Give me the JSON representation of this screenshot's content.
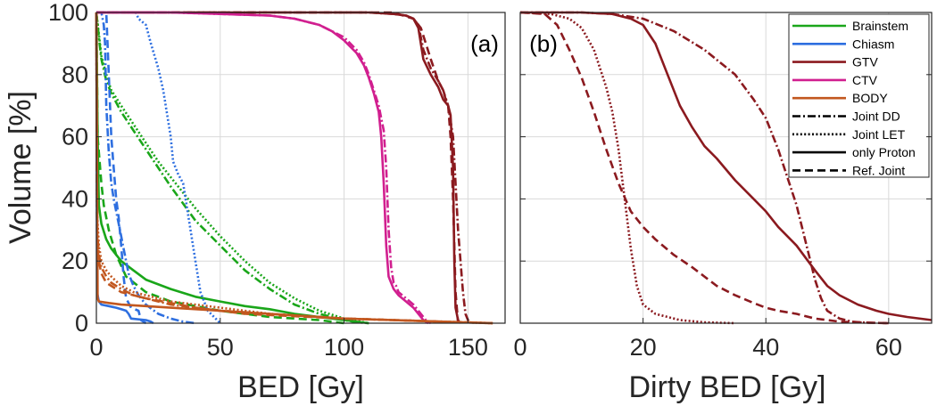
{
  "chart_data": [
    {
      "type": "line",
      "panel_label": "(a)",
      "title": "",
      "xlabel": "BED [Gy]",
      "ylabel": "Volume [%]",
      "xlim": [
        0,
        165
      ],
      "ylim": [
        0,
        100
      ],
      "xticks": [
        0,
        50,
        100,
        150
      ],
      "yticks": [
        0,
        20,
        40,
        60,
        80,
        100
      ],
      "grid": true,
      "series": [
        {
          "name": "Brainstem",
          "structure": "Brainstem",
          "color": "#1aa61a",
          "style": "dashdot",
          "x": [
            0,
            1,
            2,
            4,
            6,
            10,
            15,
            20,
            25,
            30,
            40,
            50,
            60,
            70,
            80,
            90,
            100,
            105,
            110
          ],
          "y": [
            100,
            92,
            85,
            78,
            74,
            68,
            62,
            56,
            50,
            44,
            33,
            25,
            17,
            11,
            6,
            3,
            1,
            0.3,
            0
          ]
        },
        {
          "name": "Brainstem",
          "structure": "Brainstem",
          "color": "#1aa61a",
          "style": "dotted",
          "x": [
            0,
            1,
            2,
            4,
            6,
            10,
            15,
            20,
            25,
            30,
            35,
            40,
            50,
            60,
            70,
            80,
            90,
            100,
            110
          ],
          "y": [
            100,
            93,
            86,
            80,
            75,
            70,
            64,
            58,
            52,
            47,
            42,
            37,
            28,
            20,
            13,
            8,
            4,
            1.5,
            0
          ]
        },
        {
          "name": "Brainstem",
          "structure": "Brainstem",
          "color": "#1aa61a",
          "style": "solid",
          "x": [
            0,
            0.5,
            1,
            2,
            4,
            6,
            10,
            15,
            20,
            30,
            40,
            50,
            60,
            70,
            80,
            90,
            100,
            110
          ],
          "y": [
            100,
            60,
            38,
            32,
            27,
            24,
            20,
            17,
            14,
            11,
            8.5,
            7,
            5.5,
            4.5,
            3,
            2,
            1,
            0
          ]
        },
        {
          "name": "Brainstem",
          "structure": "Brainstem",
          "color": "#1aa61a",
          "style": "dashed",
          "x": [
            0,
            0.5,
            1,
            2,
            3,
            5,
            8,
            12,
            20,
            30,
            50,
            70,
            90,
            100
          ],
          "y": [
            100,
            60,
            55,
            45,
            38,
            30,
            22,
            15,
            10,
            7,
            4,
            2,
            1,
            0
          ]
        },
        {
          "name": "Chiasm",
          "structure": "Chiasm",
          "color": "#2e6fe0",
          "style": "dashdot",
          "x": [
            0,
            2,
            3,
            3.5,
            4,
            5,
            6,
            7,
            8,
            9,
            10,
            11,
            12,
            13,
            15,
            17,
            20,
            25,
            30,
            35,
            40
          ],
          "y": [
            100,
            100,
            96,
            90,
            70,
            55,
            45,
            40,
            36,
            32,
            28,
            24,
            20,
            16,
            12,
            9,
            6,
            3,
            1.5,
            0.5,
            0
          ]
        },
        {
          "name": "Chiasm",
          "structure": "Chiasm",
          "color": "#2e6fe0",
          "style": "dotted",
          "x": [
            0,
            16,
            17,
            20,
            22,
            25,
            27,
            28,
            30,
            31,
            33,
            35,
            38,
            40,
            42,
            45,
            50
          ],
          "y": [
            100,
            100,
            98,
            96,
            90,
            82,
            75,
            70,
            60,
            52,
            48,
            45,
            30,
            20,
            10,
            4,
            0
          ]
        },
        {
          "name": "Chiasm",
          "structure": "Chiasm",
          "color": "#2e6fe0",
          "style": "solid",
          "x": [
            0,
            0.3,
            1,
            2,
            5,
            8,
            10,
            12,
            13,
            14,
            20,
            22,
            23
          ],
          "y": [
            100,
            10,
            7,
            6,
            5.5,
            5,
            4.5,
            4,
            3,
            1.5,
            1,
            0.5,
            0
          ]
        },
        {
          "name": "Chiasm",
          "structure": "Chiasm",
          "color": "#2e6fe0",
          "style": "dashed",
          "x": [
            0,
            4,
            5,
            6,
            7,
            8,
            9,
            10,
            11,
            12,
            14,
            17,
            18,
            20
          ],
          "y": [
            100,
            100,
            80,
            60,
            50,
            40,
            34,
            25,
            15,
            8,
            5,
            4,
            1,
            0
          ]
        },
        {
          "name": "GTV",
          "structure": "GTV",
          "color": "#8b1a1f",
          "style": "dashdot",
          "x": [
            0,
            110,
            120,
            125,
            128,
            130,
            132,
            135,
            138,
            140,
            142,
            144,
            146,
            148,
            149,
            150,
            151
          ],
          "y": [
            100,
            100,
            99.5,
            99,
            98,
            96,
            88,
            82,
            78,
            75,
            70,
            60,
            30,
            10,
            3,
            1,
            0
          ]
        },
        {
          "name": "GTV",
          "structure": "GTV",
          "color": "#8b1a1f",
          "style": "solid",
          "x": [
            0,
            110,
            120,
            125,
            128,
            130,
            132,
            135,
            138,
            140,
            142,
            143,
            144,
            144.5,
            145,
            146,
            147
          ],
          "y": [
            100,
            100,
            99.5,
            99,
            98,
            95,
            85,
            80,
            76,
            72,
            70,
            67,
            50,
            20,
            5,
            1,
            0
          ]
        },
        {
          "name": "GTV",
          "structure": "GTV",
          "color": "#8b1a1f",
          "style": "dashed",
          "x": [
            0,
            120,
            128,
            131,
            133,
            135,
            138,
            140,
            141,
            142,
            143,
            144,
            145,
            146
          ],
          "y": [
            100,
            100,
            98,
            95,
            90,
            85,
            78,
            75,
            72,
            70,
            60,
            40,
            10,
            0
          ]
        },
        {
          "name": "CTV",
          "structure": "CTV",
          "color": "#d11f8f",
          "style": "dashdot",
          "x": [
            0,
            30,
            50,
            70,
            80,
            90,
            95,
            100,
            105,
            108,
            110,
            112,
            114,
            116,
            117,
            118,
            119,
            120,
            121,
            122,
            125,
            128,
            130,
            133,
            135
          ],
          "y": [
            100,
            100,
            99.5,
            99,
            98,
            96,
            94,
            92,
            88,
            84,
            80,
            75,
            70,
            62,
            50,
            30,
            18,
            13,
            12,
            10,
            8,
            6,
            4,
            1,
            0
          ]
        },
        {
          "name": "CTV",
          "structure": "CTV",
          "color": "#d11f8f",
          "style": "solid",
          "x": [
            0,
            30,
            50,
            70,
            80,
            90,
            95,
            100,
            105,
            108,
            110,
            112,
            114,
            115,
            116,
            117,
            118,
            119,
            120,
            122,
            125,
            128,
            130,
            132,
            134
          ],
          "y": [
            100,
            100,
            99.5,
            99,
            98,
            96,
            94,
            91,
            87,
            83,
            79,
            74,
            68,
            60,
            45,
            25,
            15,
            13,
            11,
            9,
            7,
            5,
            3,
            1,
            0
          ]
        },
        {
          "name": "BODY",
          "structure": "BODY",
          "color": "#c2571f",
          "style": "dashdot",
          "x": [
            0,
            0.3,
            1,
            2,
            4,
            6,
            10,
            15,
            20,
            30,
            50,
            70,
            100,
            120,
            140,
            160
          ],
          "y": [
            100,
            30,
            22,
            18,
            15,
            13,
            11,
            9,
            8,
            6,
            4,
            3,
            1.5,
            1,
            0.5,
            0
          ]
        },
        {
          "name": "BODY",
          "structure": "BODY",
          "color": "#c2571f",
          "style": "dotted",
          "x": [
            0,
            0.3,
            1,
            2,
            4,
            6,
            10,
            15,
            20,
            30,
            50,
            70,
            100,
            120,
            140,
            160
          ],
          "y": [
            100,
            35,
            25,
            20,
            17,
            15,
            12,
            10,
            9,
            7,
            5,
            3,
            1.5,
            1,
            0.5,
            0
          ]
        },
        {
          "name": "BODY",
          "structure": "BODY",
          "color": "#c2571f",
          "style": "solid",
          "x": [
            0,
            0.5,
            1,
            5,
            10,
            20,
            30,
            50,
            80,
            100,
            120,
            140,
            160
          ],
          "y": [
            100,
            8,
            7,
            6.5,
            6,
            5.5,
            5,
            4,
            2.5,
            1.5,
            1,
            0.5,
            0
          ]
        },
        {
          "name": "BODY",
          "structure": "BODY",
          "color": "#c2571f",
          "style": "dashed",
          "x": [
            0,
            0.3,
            1,
            2,
            4,
            10,
            20,
            40,
            60,
            100,
            140,
            160
          ],
          "y": [
            100,
            25,
            20,
            16,
            13,
            10,
            8,
            5,
            3,
            1.5,
            0.5,
            0
          ]
        }
      ]
    },
    {
      "type": "line",
      "panel_label": "(b)",
      "title": "",
      "xlabel": "Dirty BED [Gy]",
      "ylabel": "",
      "xlim": [
        0,
        67
      ],
      "ylim": [
        0,
        100
      ],
      "xticks": [
        0,
        20,
        40,
        60
      ],
      "yticks": [
        0,
        20,
        40,
        60,
        80,
        100
      ],
      "grid": true,
      "series": [
        {
          "name": "GTV",
          "structure": "GTV",
          "color": "#8b1a1f",
          "style": "dashdot",
          "x": [
            0,
            10,
            15,
            20,
            25,
            30,
            35,
            38,
            40,
            42,
            44,
            45,
            46,
            47,
            48,
            49,
            50,
            52,
            54,
            56,
            60
          ],
          "y": [
            100,
            100,
            99.5,
            98,
            94,
            88,
            80,
            72,
            66,
            56,
            44,
            38,
            30,
            22,
            14,
            8,
            4,
            1.5,
            0.5,
            0.2,
            0
          ]
        },
        {
          "name": "GTV",
          "structure": "GTV",
          "color": "#8b1a1f",
          "style": "dotted",
          "x": [
            0,
            5,
            8,
            10,
            12,
            14,
            15,
            16,
            17,
            18,
            19,
            20,
            22,
            24,
            26,
            30,
            35
          ],
          "y": [
            100,
            99.5,
            98,
            95,
            88,
            76,
            68,
            56,
            40,
            24,
            12,
            6,
            3,
            2,
            1,
            0.3,
            0
          ]
        },
        {
          "name": "GTV",
          "structure": "GTV",
          "color": "#8b1a1f",
          "style": "solid",
          "x": [
            0,
            10,
            15,
            18,
            20,
            22,
            24,
            26,
            28,
            30,
            32,
            35,
            38,
            40,
            42,
            45,
            48,
            50,
            52,
            55,
            58,
            60,
            63,
            67
          ],
          "y": [
            100,
            100,
            99.5,
            98,
            96,
            90,
            80,
            70,
            63,
            57,
            53,
            46,
            40,
            36,
            31,
            25,
            17,
            12,
            9,
            6,
            4,
            3,
            2,
            1
          ]
        },
        {
          "name": "GTV",
          "structure": "GTV",
          "color": "#8b1a1f",
          "style": "dashed",
          "x": [
            0,
            4,
            6,
            8,
            10,
            12,
            14,
            16,
            18,
            20,
            22,
            25,
            28,
            30,
            32,
            35,
            38,
            40,
            42,
            45,
            48,
            50,
            52,
            55,
            58,
            60
          ],
          "y": [
            100,
            99.5,
            96,
            88,
            79,
            68,
            56,
            45,
            36,
            31,
            27,
            22,
            18,
            15,
            12,
            9,
            6.5,
            5,
            4,
            3,
            1.5,
            1,
            0.5,
            0.3,
            0.1,
            0
          ]
        }
      ],
      "legend": {
        "placement": "top-right",
        "entries": [
          {
            "label": "Brainstem",
            "color": "#1aa61a",
            "style": "solid"
          },
          {
            "label": "Chiasm",
            "color": "#2e6fe0",
            "style": "solid"
          },
          {
            "label": "GTV",
            "color": "#8b1a1f",
            "style": "solid"
          },
          {
            "label": "CTV",
            "color": "#d11f8f",
            "style": "solid"
          },
          {
            "label": "BODY",
            "color": "#c2571f",
            "style": "solid"
          },
          {
            "label": "Joint DD",
            "color": "#000000",
            "style": "dashdot"
          },
          {
            "label": "Joint LET",
            "color": "#000000",
            "style": "dotted"
          },
          {
            "label": "only Proton",
            "color": "#000000",
            "style": "solid"
          },
          {
            "label": "Ref. Joint",
            "color": "#000000",
            "style": "dashed"
          }
        ]
      }
    }
  ]
}
